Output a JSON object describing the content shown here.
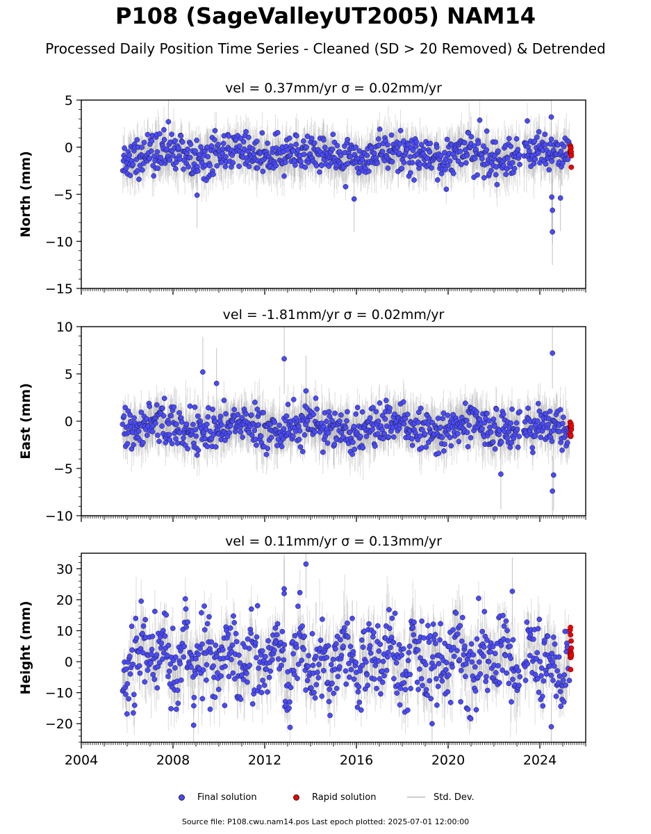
{
  "title": "P108 (SageValleyUT2005) NAM14",
  "subtitle": "Processed Daily Position Time Series - Cleaned (SD > 20 Removed) & Detrended",
  "colors": {
    "final": "#4a4aff",
    "final_edge": "#1a1a1a",
    "rapid": "#ee0000",
    "stddev": "#9a9a9a"
  },
  "legend": {
    "final": "Final solution",
    "rapid": "Rapid solution",
    "stddev": "Std. Dev."
  },
  "footer": "Source file: P108.cwu.nam14.pos  Last epoch plotted: 2025-07-01 12:00:00",
  "chart_data": [
    {
      "type": "scatter",
      "panel": "north",
      "title": "vel = 0.37mm/yr   σ = 0.02mm/yr",
      "ylabel": "North (mm)",
      "ylim": [
        -15,
        5
      ],
      "xlim": [
        2004.0,
        2026.0
      ],
      "yticks": [
        "5",
        "0",
        "−5",
        "−10",
        "−15"
      ],
      "ytick_values": [
        5,
        0,
        -5,
        -10,
        -15
      ],
      "data_start": 2005.8,
      "data_end": 2025.5,
      "rapid_start": 2025.3,
      "center": -0.9,
      "scatter_sd": 1.05,
      "error_half": 1.6,
      "outliers": [
        [
          2024.55,
          -9.0
        ],
        [
          2024.55,
          -6.7
        ],
        [
          2024.52,
          -5.3
        ],
        [
          2024.5,
          3.2
        ],
        [
          2009.05,
          -5.1
        ],
        [
          2015.9,
          -5.5
        ],
        [
          2024.9,
          -5.4
        ],
        [
          2007.8,
          2.7
        ]
      ]
    },
    {
      "type": "scatter",
      "panel": "east",
      "title": "vel = -1.81mm/yr   σ = 0.02mm/yr",
      "ylabel": "East (mm)",
      "ylim": [
        -10,
        10
      ],
      "xlim": [
        2004.0,
        2026.0
      ],
      "yticks": [
        "10",
        "5",
        "0",
        "−5",
        "−10"
      ],
      "ytick_values": [
        10,
        5,
        0,
        -5,
        -10
      ],
      "data_start": 2005.8,
      "data_end": 2025.5,
      "rapid_start": 2025.3,
      "center": -0.7,
      "scatter_sd": 1.05,
      "error_half": 1.7,
      "outliers": [
        [
          2012.85,
          6.6
        ],
        [
          2024.55,
          7.2
        ],
        [
          2024.55,
          -7.4
        ],
        [
          2024.6,
          -5.7
        ],
        [
          2022.3,
          -5.6
        ],
        [
          2009.3,
          5.2
        ],
        [
          2009.9,
          4.0
        ],
        [
          2013.8,
          3.2
        ]
      ]
    },
    {
      "type": "scatter",
      "panel": "height",
      "title": "vel = 0.11mm/yr   σ = 0.13mm/yr",
      "ylabel": "Height (mm)",
      "ylim": [
        -26,
        35
      ],
      "xlim": [
        2004.0,
        2026.0
      ],
      "yticks": [
        "30",
        "20",
        "10",
        "0",
        "−10",
        "−20"
      ],
      "ytick_values": [
        30,
        20,
        10,
        0,
        -10,
        -20
      ],
      "xticks": [
        "2004",
        "2008",
        "2012",
        "2016",
        "2020",
        "2024"
      ],
      "xtick_values": [
        2004,
        2008,
        2012,
        2016,
        2020,
        2024
      ],
      "data_start": 2005.8,
      "data_end": 2025.5,
      "rapid_start": 2025.3,
      "center": 0.5,
      "scatter_sd": 6.5,
      "error_half": 5.0,
      "seasonal_amp": 4.5,
      "outliers": [
        [
          2013.8,
          31.5
        ],
        [
          2012.85,
          23.5
        ],
        [
          2012.85,
          22.0
        ],
        [
          2022.8,
          22.7
        ],
        [
          2024.5,
          -21.0
        ],
        [
          2008.9,
          -20.5
        ],
        [
          2019.3,
          -20.0
        ]
      ]
    }
  ]
}
